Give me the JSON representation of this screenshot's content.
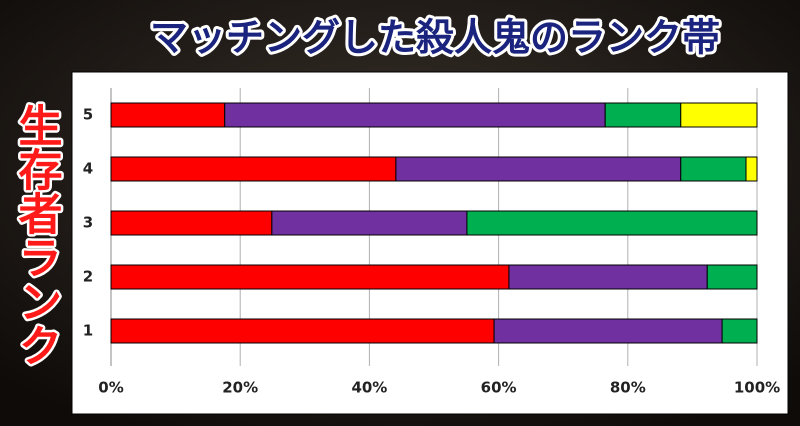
{
  "chart_data": {
    "type": "stacked-bar-horizontal",
    "title": "マッチングした殺人鬼のランク帯",
    "y_label": "生存者ランク",
    "categories": [
      "1",
      "2",
      "3",
      "4",
      "5"
    ],
    "series": [
      {
        "color": "#ff0000",
        "values": [
          59.3,
          61.6,
          24.9,
          44.1,
          17.6
        ]
      },
      {
        "color": "#7030a0",
        "values": [
          35.3,
          30.7,
          30.2,
          44.1,
          58.9
        ]
      },
      {
        "color": "#00b050",
        "values": [
          5.4,
          7.7,
          44.9,
          10.1,
          11.7
        ]
      },
      {
        "color": "#ffff00",
        "values": [
          0,
          0,
          0,
          1.7,
          11.8
        ]
      }
    ],
    "xlim": [
      0,
      100
    ],
    "xticks": [
      {
        "value": 0,
        "label": "0%"
      },
      {
        "value": 20,
        "label": "20%"
      },
      {
        "value": 40,
        "label": "40%"
      },
      {
        "value": 60,
        "label": "60%"
      },
      {
        "value": 80,
        "label": "80%"
      },
      {
        "value": 100,
        "label": "100%"
      }
    ],
    "grid": true
  }
}
